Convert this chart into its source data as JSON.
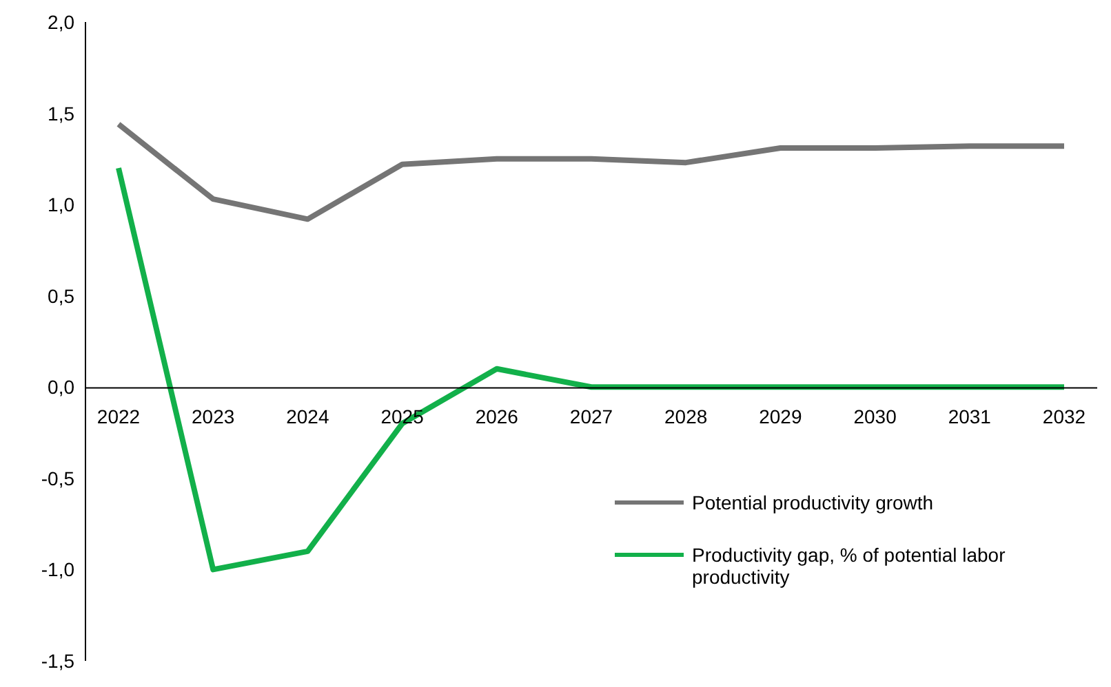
{
  "chart_data": {
    "type": "line",
    "categories": [
      "2022",
      "2023",
      "2024",
      "2025",
      "2026",
      "2027",
      "2028",
      "2029",
      "2030",
      "2031",
      "2032"
    ],
    "series": [
      {
        "name": "Potential productivity growth",
        "color": "#757575",
        "values": [
          1.44,
          1.03,
          0.92,
          1.22,
          1.25,
          1.25,
          1.23,
          1.31,
          1.31,
          1.32,
          1.32
        ]
      },
      {
        "name": "Productivity gap, % of potential labor productivity",
        "color": "#12b04a",
        "values": [
          1.2,
          -1.0,
          -0.9,
          -0.2,
          0.1,
          0,
          0,
          0,
          0,
          0,
          0
        ]
      }
    ],
    "ylim": [
      -1.5,
      2.0
    ],
    "yticks": [
      {
        "value": -1.5,
        "label": "-1,5"
      },
      {
        "value": -1.0,
        "label": "-1,0"
      },
      {
        "value": -0.5,
        "label": "-0,5"
      },
      {
        "value": 0,
        "label": "0,0"
      },
      {
        "value": 0.5,
        "label": "0,5"
      },
      {
        "value": 1.0,
        "label": "1,0"
      },
      {
        "value": 1.5,
        "label": "1,5"
      },
      {
        "value": 2.0,
        "label": "2,0"
      }
    ],
    "grid": false,
    "legend": "bottom right",
    "marker": "none",
    "line_style": "solid"
  }
}
